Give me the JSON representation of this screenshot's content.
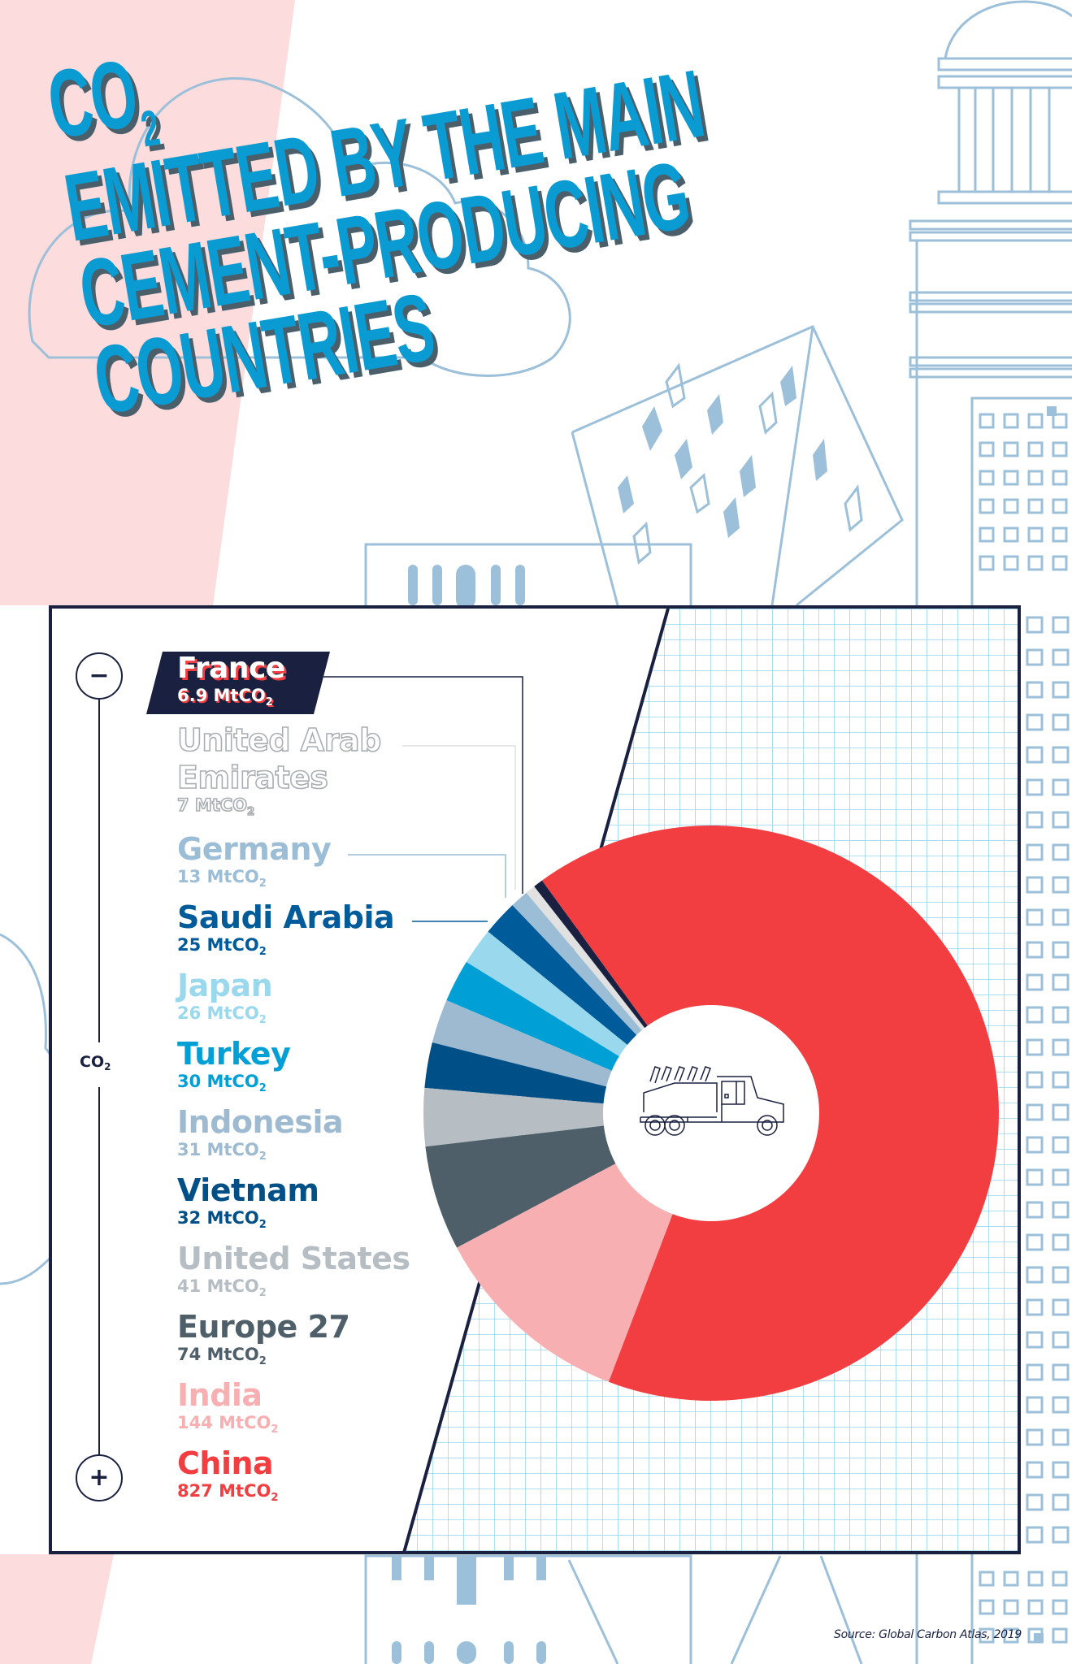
{
  "title": {
    "line1_main": "CO",
    "line1_sub": "2",
    "line2": "EMITTED BY THE MAIN",
    "line3": "CEMENT-PRODUCING",
    "line4": "COUNTRIES"
  },
  "scale": {
    "minus_symbol": "−",
    "plus_symbol": "+",
    "axis_label_main": "CO",
    "axis_label_sub": "2"
  },
  "colors": {
    "title_blue": "#0a9bd3",
    "title_shadow": "#4b5f6b",
    "pink_band": "#fcdcdc",
    "building_line": "#9cc0d9",
    "grid_line": "#5cc3e6",
    "frame": "#1a2140"
  },
  "legend": [
    {
      "name": "France",
      "value": "6.9 MtCO",
      "sub": "2",
      "color": "#1a2140",
      "style": "badge"
    },
    {
      "name": "United Arab Emirates",
      "name_line1": "United Arab",
      "name_line2": "Emirates",
      "value": "7 MtCO",
      "sub": "2",
      "color": "#e1e1e1",
      "style": "outline"
    },
    {
      "name": "Germany",
      "value": "13 MtCO",
      "sub": "2",
      "color": "#9bbdd6"
    },
    {
      "name": "Saudi Arabia",
      "value": "25 MtCO",
      "sub": "2",
      "color": "#005b9a"
    },
    {
      "name": "Japan",
      "value": "26 MtCO",
      "sub": "2",
      "color": "#9ad8ee"
    },
    {
      "name": "Turkey",
      "value": "30 MtCO",
      "sub": "2",
      "color": "#009fd6"
    },
    {
      "name": "Indonesia",
      "value": "31 MtCO",
      "sub": "2",
      "color": "#9dbad0"
    },
    {
      "name": "Vietnam",
      "value": "32 MtCO",
      "sub": "2",
      "color": "#004f86"
    },
    {
      "name": "United States",
      "value": "41 MtCO",
      "sub": "2",
      "color": "#b6bec4"
    },
    {
      "name": "Europe 27",
      "value": "74 MtCO",
      "sub": "2",
      "color": "#4e5f6a"
    },
    {
      "name": "India",
      "value": "144 MtCO",
      "sub": "2",
      "color": "#f8afb1"
    },
    {
      "name": "China",
      "value": "827 MtCO",
      "sub": "2",
      "color": "#f23e40"
    }
  ],
  "center_icon": "cement-truck-icon",
  "source": "Source: Global Carbon Atlas, 2019",
  "chart_data": {
    "type": "pie",
    "variant": "donut",
    "title": "CO2 emitted by the main cement-producing countries",
    "unit": "MtCO2",
    "categories": [
      "France",
      "United Arab Emirates",
      "Germany",
      "Saudi Arabia",
      "Japan",
      "Turkey",
      "Indonesia",
      "Vietnam",
      "United States",
      "Europe 27",
      "India",
      "China"
    ],
    "values": [
      6.9,
      7,
      13,
      25,
      26,
      30,
      31,
      32,
      41,
      74,
      144,
      827
    ],
    "colors": [
      "#1a2140",
      "#e1e1e1",
      "#9bbdd6",
      "#005b9a",
      "#9ad8ee",
      "#009fd6",
      "#9dbad0",
      "#004f86",
      "#b6bec4",
      "#4e5f6a",
      "#f8afb1",
      "#f23e40"
    ],
    "legend_position": "left",
    "legend_order": "ascending top-to-bottom",
    "source": "Global Carbon Atlas, 2019"
  }
}
